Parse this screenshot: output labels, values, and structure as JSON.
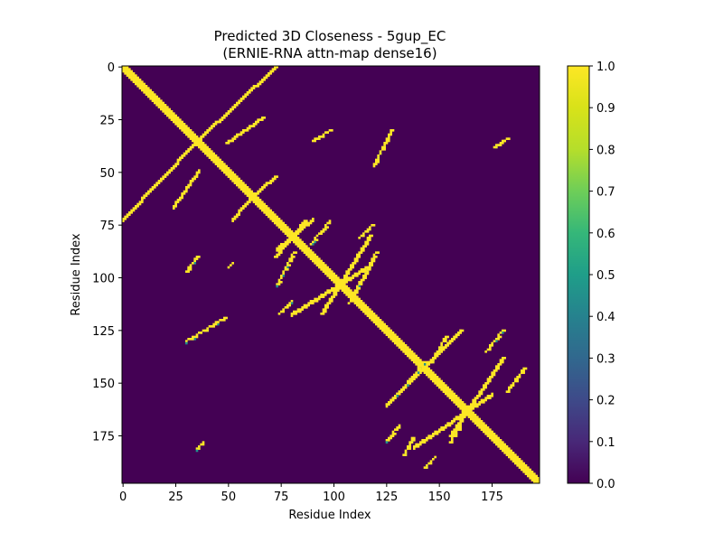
{
  "chart_data": {
    "type": "heatmap",
    "title": "Predicted 3D Closeness - 5gup_EC",
    "subtitle": "(ERNIE-RNA attn-map dense16)",
    "xlabel": "Residue Index",
    "ylabel": "Residue Index",
    "matrix_size": 198,
    "xlim": [
      0,
      197
    ],
    "ylim": [
      197,
      0
    ],
    "x_ticks": [
      "0",
      "25",
      "50",
      "75",
      "100",
      "125",
      "150",
      "175"
    ],
    "y_ticks": [
      "0",
      "25",
      "50",
      "75",
      "100",
      "125",
      "150",
      "175"
    ],
    "colorbar": {
      "range": [
        0.0,
        1.0
      ],
      "ticks": [
        "0.0",
        "0.1",
        "0.2",
        "0.3",
        "0.4",
        "0.5",
        "0.6",
        "0.7",
        "0.8",
        "0.9",
        "1.0"
      ],
      "colormap": "viridis"
    },
    "background_value": 0.0,
    "contact_value": 1.0,
    "colors": {
      "low": "#440154",
      "high": "#fde725",
      "mid": "#21918c"
    },
    "diagonal": {
      "from": 0,
      "to": 197,
      "band": 2
    },
    "helices": [
      {
        "i": [
          0,
          35
        ],
        "j": [
          35,
          72
        ],
        "note": "anti-diagonal stem"
      },
      {
        "i": [
          24,
          36
        ],
        "j": [
          49,
          66
        ],
        "note": "anti-diagonal stem"
      },
      {
        "i": [
          52,
          62
        ],
        "j": [
          60,
          72
        ],
        "note": "anti-diagonal stem"
      },
      {
        "i": [
          73,
          90
        ],
        "j": [
          72,
          86
        ],
        "note": "anti-diagonal stem"
      },
      {
        "i": [
          80,
          117
        ],
        "j": [
          94,
          117
        ],
        "note": "anti-diagonal stem"
      },
      {
        "i": [
          125,
          160
        ],
        "j": [
          125,
          160
        ],
        "note": "anti-diagonal stem"
      },
      {
        "i": [
          138,
          175
        ],
        "j": [
          155,
          180
        ],
        "note": "anti-diagonal stem"
      }
    ],
    "off_diagonal_clusters": [
      {
        "row": [
          30,
          35
        ],
        "col": [
          90,
          98
        ]
      },
      {
        "row": [
          30,
          47
        ],
        "col": [
          119,
          127
        ]
      },
      {
        "row": [
          34,
          38
        ],
        "col": [
          176,
          182
        ]
      },
      {
        "row": [
          73,
          84
        ],
        "col": [
          89,
          98
        ]
      },
      {
        "row": [
          75,
          81
        ],
        "col": [
          112,
          118
        ]
      },
      {
        "row": [
          90,
          97
        ],
        "col": [
          30,
          35
        ]
      },
      {
        "row": [
          93,
          95
        ],
        "col": [
          50,
          52
        ]
      },
      {
        "row": [
          88,
          103
        ],
        "col": [
          73,
          81
        ]
      },
      {
        "row": [
          88,
          112
        ],
        "col": [
          107,
          120
        ]
      },
      {
        "row": [
          111,
          117
        ],
        "col": [
          74,
          80
        ]
      },
      {
        "row": [
          119,
          130
        ],
        "col": [
          30,
          48
        ]
      },
      {
        "row": [
          125,
          135
        ],
        "col": [
          172,
          180
        ]
      },
      {
        "row": [
          128,
          140
        ],
        "col": [
          146,
          153
        ]
      },
      {
        "row": [
          143,
          154
        ],
        "col": [
          182,
          190
        ]
      },
      {
        "row": [
          140,
          160
        ],
        "col": [
          126,
          143
        ]
      },
      {
        "row": [
          170,
          177
        ],
        "col": [
          125,
          131
        ]
      },
      {
        "row": [
          170,
          178
        ],
        "col": [
          155,
          160
        ]
      },
      {
        "row": [
          178,
          181
        ],
        "col": [
          35,
          38
        ]
      },
      {
        "row": [
          176,
          184
        ],
        "col": [
          133,
          137
        ]
      },
      {
        "row": [
          185,
          190
        ],
        "col": [
          143,
          148
        ]
      }
    ]
  }
}
